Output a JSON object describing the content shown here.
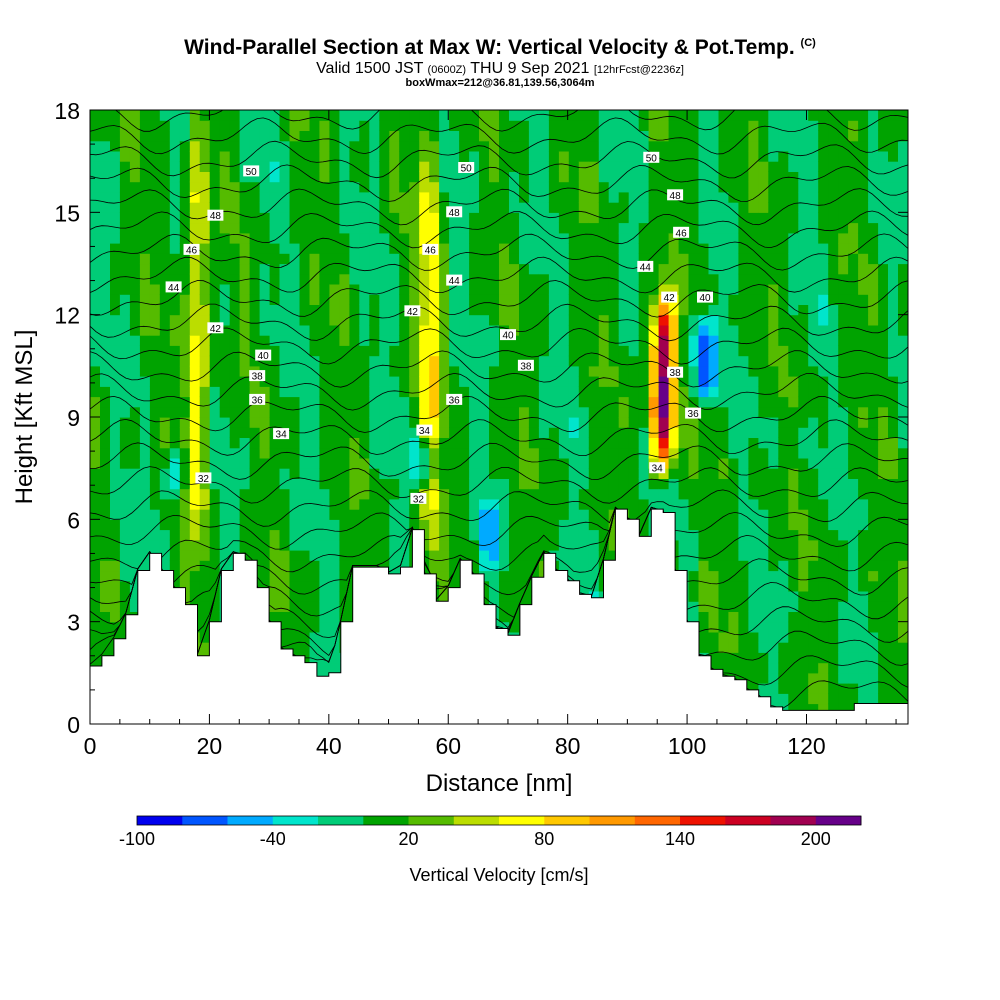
{
  "title": {
    "main": "Wind-Parallel Section at Max W: Vertical Velocity & Pot.Temp.",
    "copyright": "(C)",
    "valid_prefix": "Valid 1500 JST",
    "valid_utc": "(0600Z)",
    "valid_date": "THU 9 Sep 2021",
    "forecast": "[12hrFcst@2236z]",
    "box_info": "boxWmax=212@36.81,139.56,3064m"
  },
  "chart_data": {
    "type": "heatmap",
    "xlabel": "Distance [nm]",
    "ylabel": "Height [Kft MSL]",
    "xlim": [
      0,
      137
    ],
    "ylim": [
      0,
      18
    ],
    "x_ticks": [
      0,
      20,
      40,
      60,
      80,
      100,
      120
    ],
    "y_ticks": [
      0,
      3,
      6,
      9,
      12,
      15,
      18
    ],
    "colorbar": {
      "label": "Vertical Velocity [cm/s]",
      "tick_labels": [
        "-100",
        "-40",
        "20",
        "80",
        "140",
        "200"
      ],
      "tick_values": [
        -100,
        -40,
        20,
        80,
        140,
        200
      ],
      "range": [
        -100,
        220
      ],
      "colors": [
        "#0000ee",
        "#0055ff",
        "#00aaff",
        "#00e5cc",
        "#00cc77",
        "#00a300",
        "#55bb00",
        "#bbdd00",
        "#ffff00",
        "#ffc800",
        "#ff9900",
        "#ff6600",
        "#ee1100",
        "#cc0022",
        "#a00050",
        "#660088"
      ]
    },
    "terrain": {
      "x": [
        0,
        2,
        4,
        6,
        8,
        10,
        12,
        14,
        16,
        18,
        20,
        22,
        24,
        26,
        28,
        30,
        32,
        34,
        36,
        38,
        40,
        42,
        44,
        46,
        48,
        50,
        52,
        54,
        56,
        58,
        60,
        62,
        64,
        66,
        68,
        70,
        72,
        74,
        76,
        78,
        80,
        82,
        84,
        86,
        88,
        90,
        92,
        94,
        96,
        98,
        100,
        102,
        104,
        106,
        108,
        110,
        112,
        114,
        116,
        118,
        120,
        122,
        124,
        126,
        128,
        130,
        132,
        134,
        137
      ],
      "height_kft": [
        1.7,
        2.0,
        2.5,
        3.2,
        4.5,
        5.0,
        4.5,
        4.0,
        3.5,
        2.0,
        3.0,
        4.5,
        5.0,
        4.8,
        4.0,
        3.0,
        2.2,
        2.0,
        1.8,
        1.4,
        1.5,
        3.0,
        4.6,
        4.6,
        4.6,
        4.4,
        4.6,
        5.7,
        4.4,
        3.6,
        4.0,
        4.8,
        4.4,
        3.5,
        2.8,
        2.6,
        3.5,
        4.3,
        5.0,
        4.5,
        4.2,
        3.8,
        3.7,
        4.8,
        6.3,
        6.0,
        5.5,
        6.3,
        6.2,
        4.5,
        3.0,
        2.0,
        1.6,
        1.4,
        1.3,
        1.0,
        0.8,
        0.5,
        0.4,
        0.4,
        0.4,
        0.4,
        0.4,
        0.4,
        0.6,
        0.6,
        0.6,
        0.6,
        0.6
      ]
    },
    "updrafts": [
      {
        "x": 96,
        "y0": 7.5,
        "y1": 12.5,
        "peak_cm_s": 200
      },
      {
        "x": 18,
        "y0": 5.0,
        "y1": 17.5,
        "peak_cm_s": 70
      },
      {
        "x": 57,
        "y0": 5.0,
        "y1": 17.5,
        "peak_cm_s": 70
      }
    ],
    "downdrafts": [
      {
        "x": 103,
        "y0": 9.5,
        "y1": 12.0,
        "peak_cm_s": -90
      },
      {
        "x": 56,
        "y0": 7.0,
        "y1": 8.5,
        "peak_cm_s": -80
      },
      {
        "x": 14,
        "y0": 6.5,
        "y1": 8.0,
        "peak_cm_s": -50
      },
      {
        "x": 67,
        "y0": 4.5,
        "y1": 6.5,
        "peak_cm_s": -50
      }
    ],
    "contour_labels": [
      {
        "x": 27,
        "y": 16.2,
        "label": "50"
      },
      {
        "x": 63,
        "y": 16.3,
        "label": "50"
      },
      {
        "x": 94,
        "y": 16.6,
        "label": "50"
      },
      {
        "x": 21,
        "y": 14.9,
        "label": "48"
      },
      {
        "x": 61,
        "y": 15.0,
        "label": "48"
      },
      {
        "x": 98,
        "y": 15.5,
        "label": "48"
      },
      {
        "x": 17,
        "y": 13.9,
        "label": "46"
      },
      {
        "x": 57,
        "y": 13.9,
        "label": "46"
      },
      {
        "x": 99,
        "y": 14.4,
        "label": "46"
      },
      {
        "x": 14,
        "y": 12.8,
        "label": "44"
      },
      {
        "x": 61,
        "y": 13.0,
        "label": "44"
      },
      {
        "x": 93,
        "y": 13.4,
        "label": "44"
      },
      {
        "x": 21,
        "y": 11.6,
        "label": "42"
      },
      {
        "x": 54,
        "y": 12.1,
        "label": "42"
      },
      {
        "x": 97,
        "y": 12.5,
        "label": "42"
      },
      {
        "x": 29,
        "y": 10.8,
        "label": "40"
      },
      {
        "x": 70,
        "y": 11.4,
        "label": "40"
      },
      {
        "x": 103,
        "y": 12.5,
        "label": "40"
      },
      {
        "x": 28,
        "y": 10.2,
        "label": "38"
      },
      {
        "x": 73,
        "y": 10.5,
        "label": "38"
      },
      {
        "x": 98,
        "y": 10.3,
        "label": "38"
      },
      {
        "x": 28,
        "y": 9.5,
        "label": "36"
      },
      {
        "x": 61,
        "y": 9.5,
        "label": "36"
      },
      {
        "x": 101,
        "y": 9.1,
        "label": "36"
      },
      {
        "x": 32,
        "y": 8.5,
        "label": "34"
      },
      {
        "x": 56,
        "y": 8.6,
        "label": "34"
      },
      {
        "x": 95,
        "y": 7.5,
        "label": "34"
      },
      {
        "x": 19,
        "y": 7.2,
        "label": "32"
      },
      {
        "x": 55,
        "y": 6.6,
        "label": "32"
      }
    ]
  }
}
